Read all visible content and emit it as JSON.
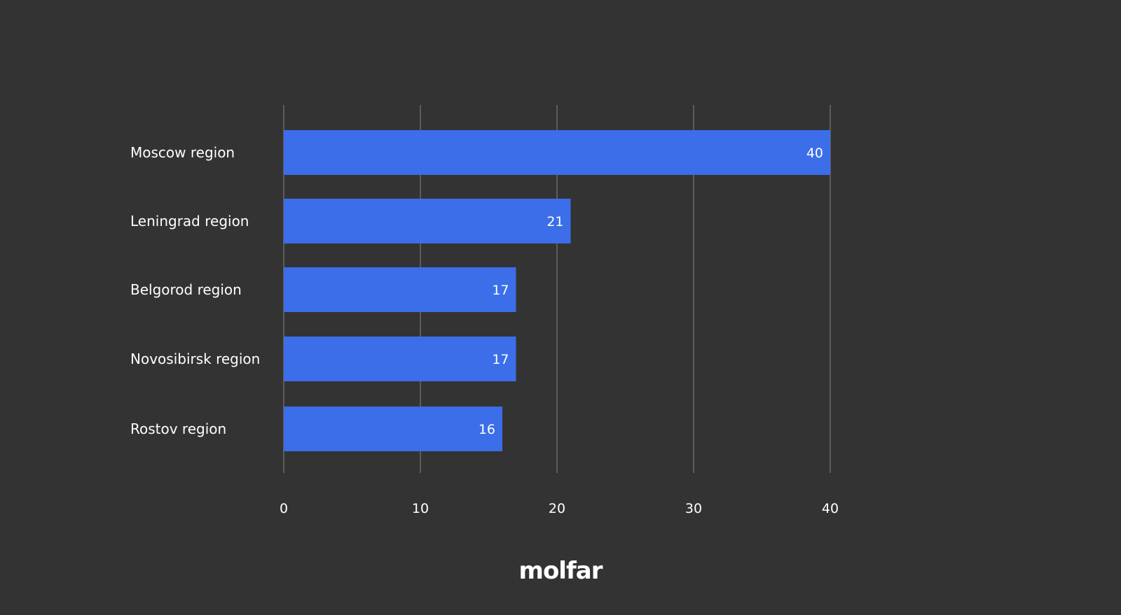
{
  "chart_data": {
    "type": "bar",
    "orientation": "horizontal",
    "categories": [
      "Moscow region",
      "Leningrad region",
      "Belgorod region",
      "Novosibirsk region",
      "Rostov region"
    ],
    "values": [
      40,
      21,
      17,
      17,
      16
    ],
    "value_labels": [
      "40",
      "21",
      "17",
      "17",
      "16"
    ],
    "xticks": [
      0,
      10,
      20,
      30,
      40
    ],
    "xtick_labels": [
      "0",
      "10",
      "20",
      "30",
      "40"
    ],
    "xlim": [
      0,
      40
    ],
    "grid": true,
    "title": "",
    "xlabel": "",
    "ylabel": ""
  },
  "colors": {
    "background": "#333333",
    "bar": "#3b6ee8",
    "gridline": "#5c5c5c",
    "text": "#ffffff"
  },
  "brand": {
    "logo_text": "molfar"
  }
}
